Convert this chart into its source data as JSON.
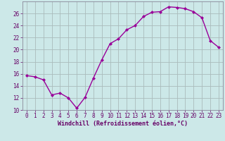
{
  "x": [
    0,
    1,
    2,
    3,
    4,
    5,
    6,
    7,
    8,
    9,
    10,
    11,
    12,
    13,
    14,
    15,
    16,
    17,
    18,
    19,
    20,
    21,
    22,
    23
  ],
  "y": [
    15.7,
    15.5,
    15.0,
    12.5,
    12.8,
    12.0,
    10.3,
    12.1,
    15.3,
    18.3,
    21.0,
    21.8,
    23.3,
    24.0,
    25.5,
    26.2,
    26.3,
    27.1,
    27.0,
    26.8,
    26.3,
    25.3,
    21.5,
    20.4
  ],
  "line_color": "#990099",
  "marker": "D",
  "markersize": 2.0,
  "linewidth": 1.0,
  "bg_color": "#cce8e8",
  "grid_color": "#aabbbb",
  "xlabel": "Windchill (Refroidissement éolien,°C)",
  "xlabel_color": "#660066",
  "tick_color": "#660066",
  "ylim": [
    10,
    28
  ],
  "xlim": [
    -0.5,
    23.5
  ],
  "yticks": [
    10,
    12,
    14,
    16,
    18,
    20,
    22,
    24,
    26
  ],
  "xticks": [
    0,
    1,
    2,
    3,
    4,
    5,
    6,
    7,
    8,
    9,
    10,
    11,
    12,
    13,
    14,
    15,
    16,
    17,
    18,
    19,
    20,
    21,
    22,
    23
  ],
  "tick_fontsize": 5.5,
  "xlabel_fontsize": 6.0,
  "spine_color": "#888899"
}
